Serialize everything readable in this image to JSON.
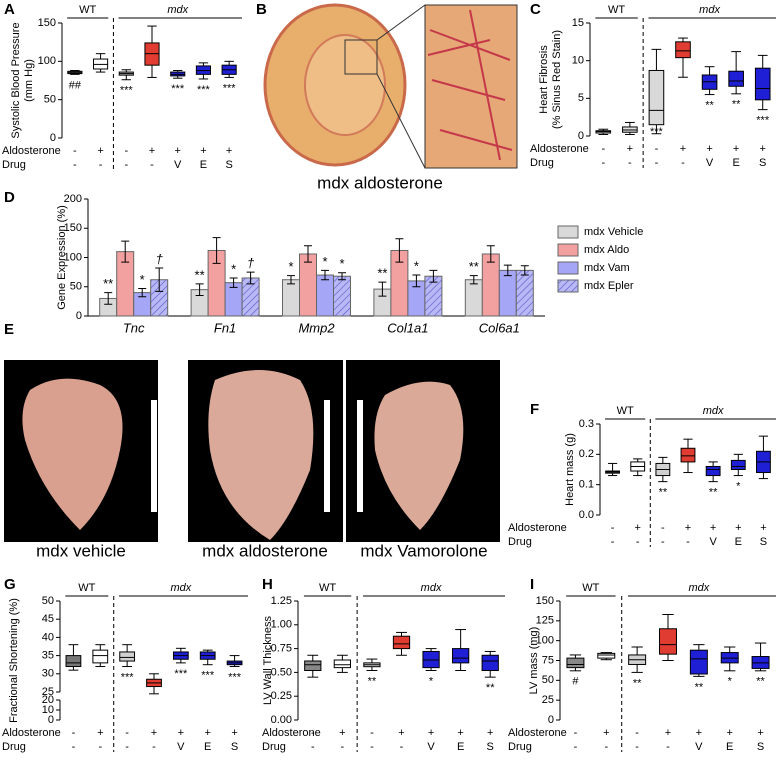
{
  "chart_data": [
    {
      "type": "box",
      "panel": "A",
      "ylabel": [
        "Systolic Blood Pressure",
        "(mm Hg)"
      ],
      "group_labels": [
        "WT",
        "mdx"
      ],
      "row_labels": [
        "Aldosterone",
        "Drug"
      ],
      "aldosterone": [
        "-",
        "+",
        "-",
        "+",
        "+",
        "+",
        "+"
      ],
      "drug": [
        "-",
        "-",
        "-",
        "-",
        "V",
        "E",
        "S"
      ],
      "min": [
        83,
        86,
        76,
        79,
        78,
        77,
        79
      ],
      "q1": [
        84,
        90,
        82,
        95,
        81,
        83,
        83
      ],
      "median": [
        85,
        96,
        84,
        110,
        83,
        88,
        89
      ],
      "q3": [
        87,
        103,
        86,
        124,
        86,
        94,
        95
      ],
      "max": [
        88,
        110,
        89,
        146,
        88,
        98,
        100
      ],
      "colors": [
        "#555555",
        "#ffffff",
        "#cccccc",
        "#e03c31",
        "#1f1fd6",
        "#1f1fd6",
        "#1f1fd6"
      ],
      "annotations": [
        "##",
        null,
        "***",
        null,
        "***",
        "***",
        "***"
      ],
      "ylim": [
        0,
        150
      ],
      "yticks": [
        0,
        50,
        100,
        150
      ]
    },
    {
      "type": "box",
      "panel": "C",
      "ylabel": [
        "Heart Fibrosis",
        "(% Sinus Red Stain)"
      ],
      "group_labels": [
        "WT",
        "mdx"
      ],
      "row_labels": [
        "Aldosterone",
        "Drug"
      ],
      "aldosterone": [
        "-",
        "+",
        "-",
        "+",
        "+",
        "+",
        "+"
      ],
      "drug": [
        "-",
        "-",
        "-",
        "-",
        "V",
        "E",
        "S"
      ],
      "min": [
        0.2,
        0.2,
        0.3,
        7.8,
        5.5,
        5.6,
        3.5
      ],
      "q1": [
        0.4,
        0.5,
        1.5,
        10.4,
        6.2,
        6.6,
        4.8
      ],
      "median": [
        0.6,
        0.8,
        3.4,
        11.3,
        7.2,
        7.3,
        6.3
      ],
      "q3": [
        0.7,
        1.2,
        8.7,
        12.5,
        8.1,
        8.6,
        9
      ],
      "max": [
        0.9,
        1.8,
        11.5,
        13,
        9.2,
        11.2,
        10.7
      ],
      "colors": [
        "#bfbfbf",
        "#e0e0e0",
        "#d9d9d9",
        "#e03c31",
        "#1f1fd6",
        "#1f1fd6",
        "#1f1fd6"
      ],
      "annotations": [
        null,
        null,
        "***",
        null,
        "**",
        "**",
        "***"
      ],
      "ylim": [
        0,
        15
      ],
      "yticks": [
        0,
        5,
        10,
        15
      ]
    },
    {
      "type": "bar",
      "panel": "D",
      "ylabel": [
        "Gene Expression (%)"
      ],
      "categories": [
        "Tnc",
        "Fn1",
        "Mmp2",
        "Col1a1",
        "Col6a1"
      ],
      "series": [
        {
          "name": "mdx Vehicle",
          "color": "#d9d9d9",
          "values": [
            30,
            45,
            62,
            46,
            62
          ],
          "errors": [
            10,
            10,
            7,
            12,
            7
          ],
          "annotations": [
            "**",
            "**",
            "*",
            "**",
            "**"
          ]
        },
        {
          "name": "mdx Aldo",
          "color": "#f2a0a0",
          "values": [
            110,
            112,
            106,
            112,
            106
          ],
          "errors": [
            18,
            22,
            14,
            20,
            14
          ]
        },
        {
          "name": "mdx Vam",
          "color": "#a6a6f7",
          "values": [
            40,
            57,
            70,
            60,
            78
          ],
          "errors": [
            7,
            8,
            8,
            10,
            9
          ],
          "annotations": [
            "*",
            "*",
            "*",
            "*",
            null
          ]
        },
        {
          "name": "mdx Epler",
          "color": "#b8b8f5",
          "hatch": true,
          "values": [
            62,
            65,
            68,
            68,
            78
          ],
          "errors": [
            20,
            10,
            6,
            10,
            8
          ],
          "annotations": [
            "†",
            "†",
            "*",
            null,
            null
          ]
        }
      ],
      "ylim": [
        0,
        200
      ],
      "yticks": [
        0,
        50,
        100,
        150,
        200
      ]
    },
    {
      "type": "box",
      "panel": "F",
      "ylabel": [
        "Heart mass (g)"
      ],
      "group_labels": [
        "WT",
        "mdx"
      ],
      "row_labels": [
        "Aldosterone",
        "Drug"
      ],
      "aldosterone": [
        "-",
        "+",
        "-",
        "+",
        "+",
        "+",
        "+"
      ],
      "drug": [
        "-",
        "-",
        "-",
        "-",
        "V",
        "E",
        "S"
      ],
      "min": [
        0.13,
        0.13,
        0.11,
        0.14,
        0.11,
        0.13,
        0.12
      ],
      "q1": [
        0.138,
        0.145,
        0.13,
        0.175,
        0.13,
        0.15,
        0.14
      ],
      "median": [
        0.142,
        0.16,
        0.15,
        0.195,
        0.15,
        0.16,
        0.175
      ],
      "q3": [
        0.145,
        0.175,
        0.17,
        0.22,
        0.16,
        0.18,
        0.21
      ],
      "max": [
        0.17,
        0.185,
        0.19,
        0.25,
        0.175,
        0.2,
        0.26
      ],
      "colors": [
        "#666666",
        "#ffffff",
        "#d0d0d0",
        "#e03c31",
        "#1f1fd6",
        "#1f1fd6",
        "#1f1fd6"
      ],
      "annotations": [
        null,
        null,
        "**",
        null,
        "**",
        "*",
        null
      ],
      "ylim": [
        0,
        0.3
      ],
      "yticks": [
        {
          "value": 0,
          "label": "0.0"
        },
        0.1,
        0.2,
        0.3
      ]
    },
    {
      "type": "box",
      "panel": "G",
      "ylabel": [
        "Fractional Shortening (%)"
      ],
      "group_labels": [
        "WT",
        "mdx"
      ],
      "row_labels": [
        "Aldosterone",
        "Drug"
      ],
      "aldosterone": [
        "-",
        "+",
        "-",
        "+",
        "+",
        "+",
        "+"
      ],
      "drug": [
        "-",
        "-",
        "-",
        "-",
        "V",
        "E",
        "S"
      ],
      "min": [
        31,
        32,
        32,
        24.5,
        33,
        32.5,
        32
      ],
      "q1": [
        32,
        33,
        33.5,
        26.5,
        34,
        34,
        32.5
      ],
      "median": [
        33,
        35,
        34.5,
        27.5,
        35,
        35,
        33
      ],
      "q3": [
        35,
        36.5,
        36,
        28.5,
        36,
        36,
        33.5
      ],
      "max": [
        38,
        38,
        38,
        30,
        37,
        36.5,
        35
      ],
      "colors": [
        "#777777",
        "#ffffff",
        "#d0d0d0",
        "#e03c31",
        "#1f1fd6",
        "#1f1fd6",
        "#1f1fd6"
      ],
      "annotations": [
        null,
        null,
        "***",
        null,
        "***",
        "***",
        "***"
      ],
      "ylim": [
        0,
        50
      ],
      "ybreak": [
        20,
        25
      ],
      "yticks": [
        0,
        10,
        20,
        25,
        30,
        35,
        40,
        45,
        50
      ]
    },
    {
      "type": "box",
      "panel": "H",
      "ylabel": [
        "LV Wall Thickness"
      ],
      "group_labels": [
        "WT",
        "mdx"
      ],
      "row_labels": [
        "Aldosterone",
        "Drug"
      ],
      "aldosterone": [
        "-",
        "+",
        "-",
        "+",
        "+",
        "+",
        "+"
      ],
      "drug": [
        "-",
        "-",
        "-",
        "-",
        "V",
        "E",
        "S"
      ],
      "min": [
        0.45,
        0.5,
        0.52,
        0.68,
        0.52,
        0.52,
        0.45
      ],
      "q1": [
        0.52,
        0.55,
        0.56,
        0.75,
        0.55,
        0.6,
        0.52
      ],
      "median": [
        0.58,
        0.58,
        0.58,
        0.8,
        0.63,
        0.65,
        0.62
      ],
      "q3": [
        0.62,
        0.63,
        0.6,
        0.88,
        0.72,
        0.75,
        0.68
      ],
      "max": [
        0.68,
        0.68,
        0.64,
        0.92,
        0.75,
        0.95,
        0.72
      ],
      "colors": [
        "#888888",
        "#ffffff",
        "#d0d0d0",
        "#e03c31",
        "#1f1fd6",
        "#1f1fd6",
        "#1f1fd6"
      ],
      "annotations": [
        null,
        null,
        "**",
        null,
        "*",
        null,
        "**"
      ],
      "ylim": [
        0,
        1.25
      ],
      "yticks": [
        {
          "value": 0,
          "label": "0.00"
        },
        0.25,
        {
          "value": 0.5,
          "label": "0.50"
        },
        0.75,
        {
          "value": 1,
          "label": "1.00"
        },
        1.25
      ]
    },
    {
      "type": "box",
      "panel": "I",
      "ylabel": [
        "LV mass (mg)"
      ],
      "group_labels": [
        "WT",
        "mdx"
      ],
      "row_labels": [
        "Aldosterone",
        "Drug"
      ],
      "aldosterone": [
        "-",
        "+",
        "-",
        "+",
        "+",
        "+",
        "+"
      ],
      "drug": [
        "-",
        "-",
        "-",
        "-",
        "V",
        "E",
        "S"
      ],
      "min": [
        62,
        76,
        60,
        75,
        55,
        62,
        62
      ],
      "q1": [
        66,
        78,
        70,
        83,
        58,
        72,
        65
      ],
      "median": [
        70,
        82,
        76,
        95,
        77,
        78,
        72
      ],
      "q3": [
        78,
        84,
        82,
        115,
        88,
        85,
        80
      ],
      "max": [
        82,
        85,
        92,
        133,
        95,
        92,
        97
      ],
      "colors": [
        "#888888",
        "#ffffff",
        "#d0d0d0",
        "#e03c31",
        "#1f1fd6",
        "#1f1fd6",
        "#1f1fd6"
      ],
      "annotations": [
        "#",
        null,
        "**",
        null,
        "**",
        "*",
        "**"
      ],
      "ylim": [
        0,
        150
      ],
      "yticks": [
        0,
        25,
        50,
        75,
        100,
        125,
        150
      ]
    }
  ],
  "images": {
    "B": {
      "panel": "B",
      "caption": "mdx aldosterone"
    },
    "E": {
      "panel": "E",
      "captions": [
        "mdx vehicle",
        "mdx aldosterone",
        "mdx Vamorolone"
      ]
    }
  }
}
